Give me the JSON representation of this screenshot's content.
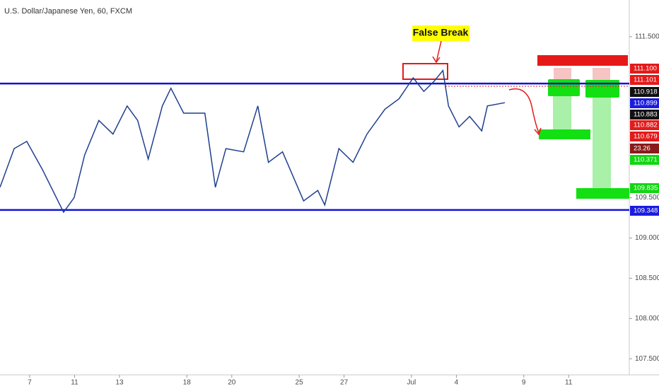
{
  "chart_data": {
    "type": "line",
    "title": "U.S. Dollar/Japanese Yen, 60, FXCM",
    "annotation": "False Break",
    "x": [
      -1.32,
      -0.69,
      -0.13,
      0.57,
      1.51,
      1.98,
      2.45,
      3.08,
      3.71,
      4.34,
      4.81,
      5.28,
      5.91,
      6.29,
      6.86,
      7.8,
      8.27,
      8.74,
      9.53,
      10.16,
      10.63,
      11.26,
      12.2,
      12.83,
      13.14,
      13.77,
      14.4,
      15.02,
      15.82,
      16.45,
      17.08,
      17.55,
      18.02,
      18.4,
      18.65,
      19.12,
      19.59,
      20.13,
      20.38,
      21.16
    ],
    "series": [
      {
        "name": "USDJPY",
        "color": "#1f3f8f",
        "values": [
          109.63,
          110.11,
          110.2,
          109.85,
          109.32,
          109.5,
          110.03,
          110.46,
          110.29,
          110.64,
          110.46,
          109.98,
          110.64,
          110.86,
          110.55,
          110.55,
          109.63,
          110.11,
          110.07,
          110.64,
          109.94,
          110.07,
          109.46,
          109.59,
          109.41,
          110.11,
          109.94,
          110.29,
          110.6,
          110.73,
          110.99,
          110.82,
          110.95,
          111.08,
          110.64,
          110.38,
          110.51,
          110.33,
          110.64,
          110.68
        ]
      }
    ],
    "levels": [
      {
        "value": 110.918,
        "color": "#1212d6"
      },
      {
        "value": 109.348,
        "color": "#1212d6"
      }
    ],
    "xlim": [
      -1.32,
      26.7
    ],
    "xticks": [
      {
        "value": 0,
        "label": "7"
      },
      {
        "value": 2,
        "label": "11"
      },
      {
        "value": 4,
        "label": "13"
      },
      {
        "value": 7,
        "label": "18"
      },
      {
        "value": 9,
        "label": "20"
      },
      {
        "value": 12,
        "label": "25"
      },
      {
        "value": 14,
        "label": "27"
      },
      {
        "value": 17,
        "label": "Jul"
      },
      {
        "value": 19,
        "label": "4"
      },
      {
        "value": 22,
        "label": "9"
      },
      {
        "value": 24,
        "label": "11"
      }
    ],
    "ylim": [
      107.3,
      111.956
    ],
    "yticks": [
      {
        "value": 107.5,
        "label": "107.500"
      },
      {
        "value": 108,
        "label": "108.000"
      },
      {
        "value": 108.5,
        "label": "108.500"
      },
      {
        "value": 109,
        "label": "109.000"
      },
      {
        "value": 109.5,
        "label": "109.500"
      },
      {
        "value": 111.5,
        "label": "111.500"
      }
    ],
    "grid": false,
    "price_labels": [
      {
        "label": "111.100",
        "color": "#e21b1b"
      },
      {
        "label": "111.101",
        "color": "#e21b1b"
      },
      {
        "label": "110.918",
        "color": "#111111"
      },
      {
        "label": "110.899",
        "color": "#1b1be0"
      },
      {
        "label": "110.883",
        "color": "#111111"
      },
      {
        "label": "110.882",
        "color": "#e21b1b"
      },
      {
        "label": "110.679",
        "color": "#e21b1b"
      },
      {
        "label": "23.26",
        "color": "#8a1b1b"
      },
      {
        "label": "110.371",
        "color": "#12d612"
      },
      {
        "label": "109.835",
        "color": "#12d612"
      },
      {
        "label": "109.348",
        "color": "#1b1be0"
      }
    ]
  }
}
